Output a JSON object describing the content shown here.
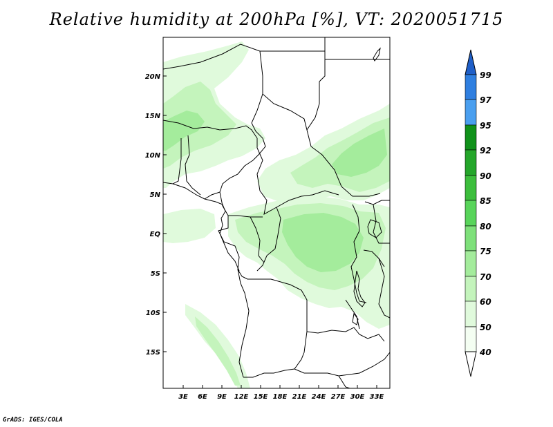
{
  "title": "Relative humidity at 200hPa [%], VT: 2020051715",
  "credit": "GrADS: IGES/COLA",
  "map": {
    "lat_labels": [
      "20N",
      "15N",
      "10N",
      "5N",
      "EQ",
      "5S",
      "10S",
      "15S"
    ],
    "lon_labels": [
      "3E",
      "6E",
      "9E",
      "12E",
      "15E",
      "18E",
      "21E",
      "24E",
      "27E",
      "30E",
      "33E"
    ]
  },
  "colorbar": {
    "levels": [
      "99",
      "97",
      "95",
      "92",
      "90",
      "85",
      "80",
      "75",
      "70",
      "60",
      "50",
      "40"
    ],
    "colors": {
      "c99": "#1f5fc8",
      "c97": "#2f7fe0",
      "c95": "#4a9fef",
      "c92": "#10921a",
      "c90": "#24a62a",
      "c85": "#3cbe3c",
      "c80": "#58d45a",
      "c75": "#7ee07a",
      "c70": "#a4ec9c",
      "c60": "#c4f4bc",
      "c50": "#e0fadc",
      "c40": "#f4fef2"
    }
  }
}
